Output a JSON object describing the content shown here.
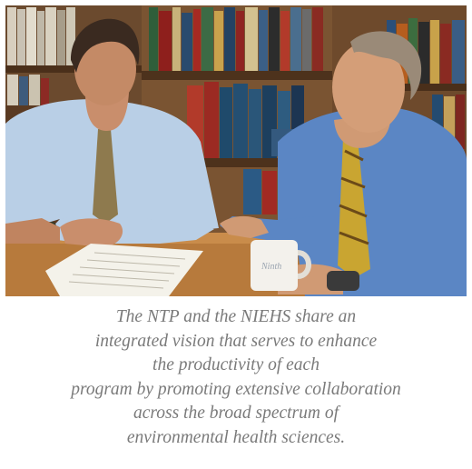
{
  "photo": {
    "mug_text": "Ninth",
    "plaque_text": ""
  },
  "caption": {
    "lines": [
      "The NTP and the NIEHS share an",
      "integrated vision that serves to enhance",
      "the productivity of each",
      "program by promoting extensive collaboration",
      "across the broad spectrum of",
      "environmental health sciences."
    ]
  },
  "colors": {
    "caption_text": "#7a7a7a",
    "shirt_left": "#b9cfe6",
    "shirt_right": "#5b86c4",
    "table": "#b77a3c"
  }
}
